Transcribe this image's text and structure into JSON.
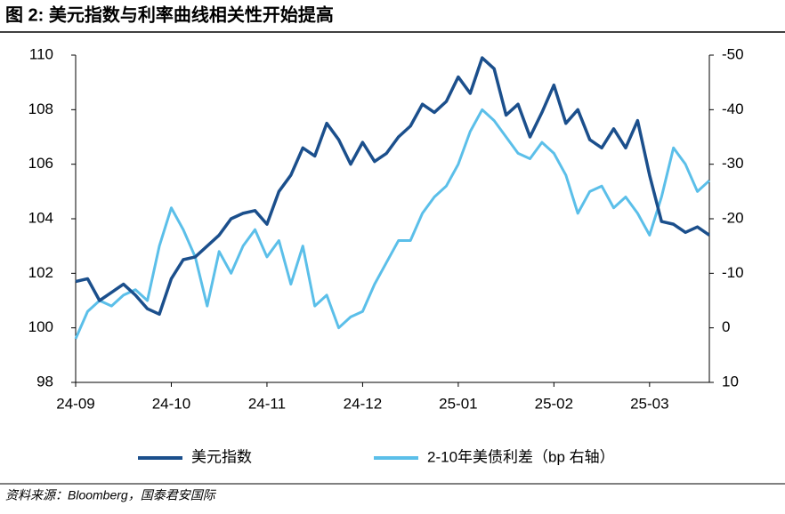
{
  "chart_data": {
    "type": "line",
    "title": "图 2:  美元指数与利率曲线相关性开始提高",
    "source": "资料来源：Bloomberg，国泰君安国际",
    "categories": [
      "24-09",
      null,
      null,
      null,
      null,
      null,
      null,
      null,
      "24-10",
      null,
      null,
      null,
      null,
      null,
      null,
      null,
      "24-11",
      null,
      null,
      null,
      null,
      null,
      null,
      null,
      "24-12",
      null,
      null,
      null,
      null,
      null,
      null,
      null,
      "25-01",
      null,
      null,
      null,
      null,
      null,
      null,
      null,
      "25-02",
      null,
      null,
      null,
      null,
      null,
      null,
      null,
      "25-03",
      null,
      null,
      null,
      null,
      null
    ],
    "series": [
      {
        "name": "美元指数",
        "color": "#1b4f8c",
        "axis": "y",
        "values": [
          101.7,
          101.8,
          101.0,
          101.3,
          101.6,
          101.2,
          100.7,
          100.5,
          101.8,
          102.5,
          102.6,
          103.0,
          103.4,
          104.0,
          104.2,
          104.3,
          103.8,
          105.0,
          105.6,
          106.6,
          106.3,
          107.5,
          106.9,
          106.0,
          106.8,
          106.1,
          106.4,
          107.0,
          107.4,
          108.2,
          107.9,
          108.3,
          109.2,
          108.6,
          109.9,
          109.5,
          107.8,
          108.2,
          107.0,
          107.9,
          108.9,
          107.5,
          108.0,
          106.9,
          106.6,
          107.3,
          106.6,
          107.6,
          105.6,
          103.9,
          103.8,
          103.5,
          103.7,
          103.4
        ]
      },
      {
        "name": "2-10年美债利差（bp 右轴）",
        "color": "#5bbfe9",
        "axis": "y2",
        "values": [
          2,
          -3,
          -5,
          -4,
          -6,
          -7,
          -5,
          -15,
          -22,
          -18,
          -13,
          -4,
          -14,
          -10,
          -15,
          -18,
          -13,
          -16,
          -8,
          -15,
          -4,
          -6,
          0,
          -2,
          -3,
          -8,
          -12,
          -16,
          -16,
          -21,
          -24,
          -26,
          -30,
          -36,
          -40,
          -38,
          -35,
          -32,
          -31,
          -34,
          -32,
          -28,
          -21,
          -25,
          -26,
          -22,
          -24,
          -21,
          -17,
          -24,
          -33,
          -30,
          -25,
          -27
        ]
      }
    ],
    "ylim": [
      98,
      110
    ],
    "yticks": [
      98,
      100,
      102,
      104,
      106,
      108,
      110
    ],
    "y2lim": [
      10,
      -50
    ],
    "y2ticks": [
      10,
      0,
      -10,
      -20,
      -30,
      -40,
      -50
    ]
  }
}
